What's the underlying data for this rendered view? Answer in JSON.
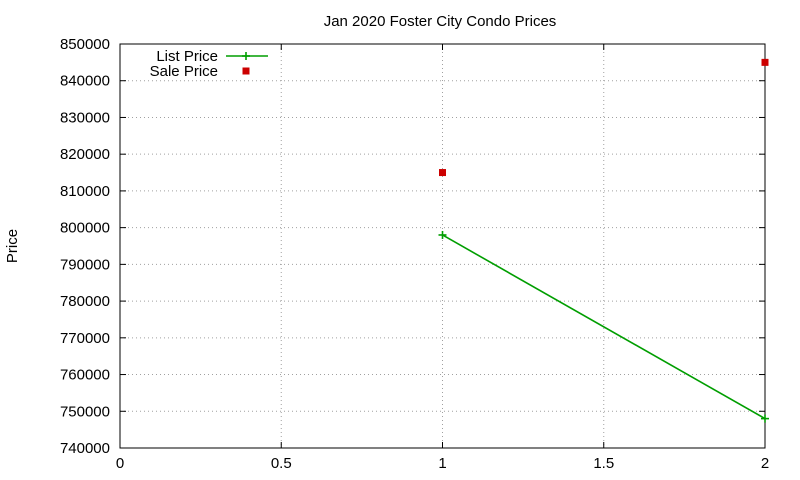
{
  "chart_data": {
    "type": "line",
    "title": "Jan 2020 Foster City Condo Prices",
    "xlabel": "",
    "ylabel": "Price",
    "xlim": [
      0,
      2
    ],
    "ylim": [
      740000,
      850000
    ],
    "x_ticks": [
      "0",
      "0.5",
      "1",
      "1.5",
      "2"
    ],
    "x_tick_values": [
      0,
      0.5,
      1,
      1.5,
      2
    ],
    "y_ticks": [
      "740000",
      "750000",
      "760000",
      "770000",
      "780000",
      "790000",
      "800000",
      "810000",
      "820000",
      "830000",
      "840000",
      "850000"
    ],
    "y_tick_values": [
      740000,
      750000,
      760000,
      770000,
      780000,
      790000,
      800000,
      810000,
      820000,
      830000,
      840000,
      850000
    ],
    "grid": true,
    "legend_position": "top-left",
    "series": [
      {
        "name": "List Price",
        "style": "line+cross",
        "color": "#009e00",
        "x": [
          1,
          2
        ],
        "y": [
          798000,
          748000
        ]
      },
      {
        "name": "Sale Price",
        "style": "square-points",
        "color": "#cc0000",
        "x": [
          1,
          2
        ],
        "y": [
          815000,
          845000
        ]
      }
    ]
  }
}
